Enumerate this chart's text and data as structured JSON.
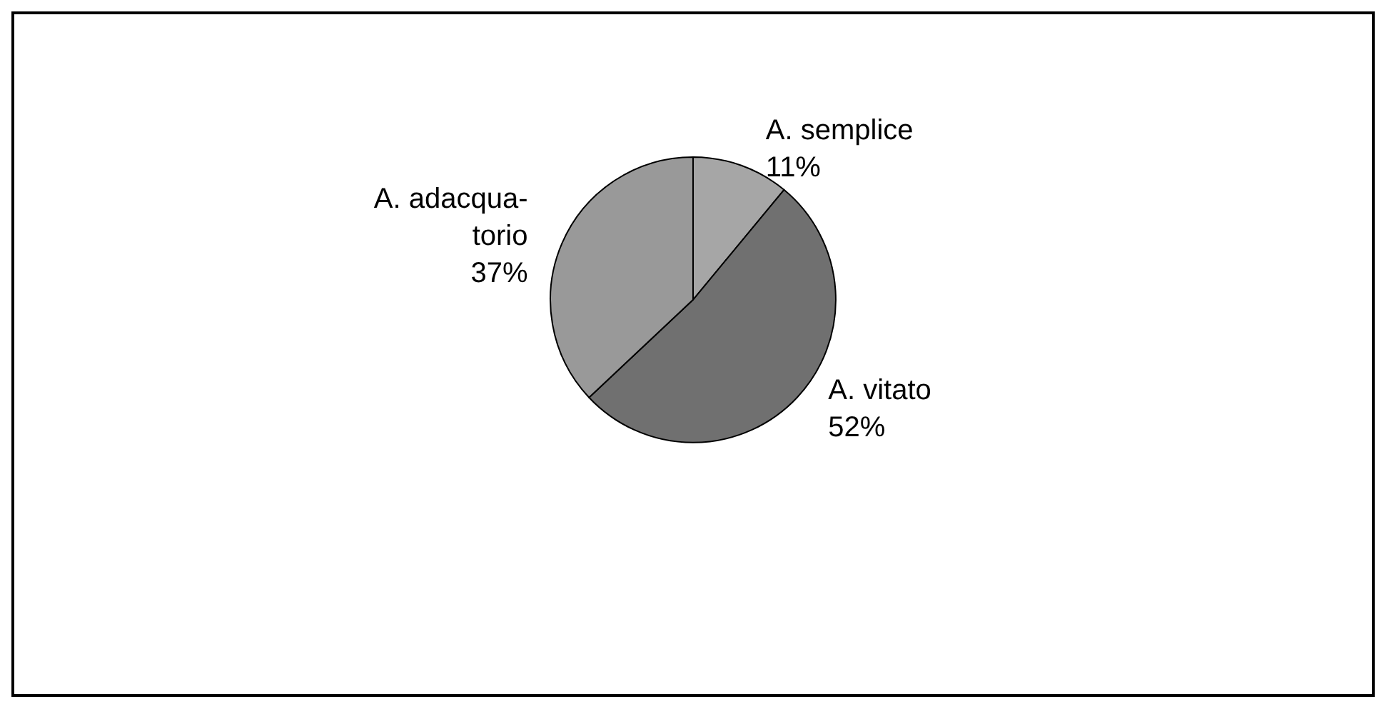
{
  "chart_data": {
    "type": "pie",
    "categories": [
      "A. semplice",
      "A. vitato",
      "A. adacqua-\ntorio"
    ],
    "values": [
      11,
      52,
      37
    ],
    "colors": [
      "#a6a6a6",
      "#707070",
      "#999999"
    ],
    "value_labels": [
      "11%",
      "52%",
      "37%"
    ],
    "legend": false
  }
}
